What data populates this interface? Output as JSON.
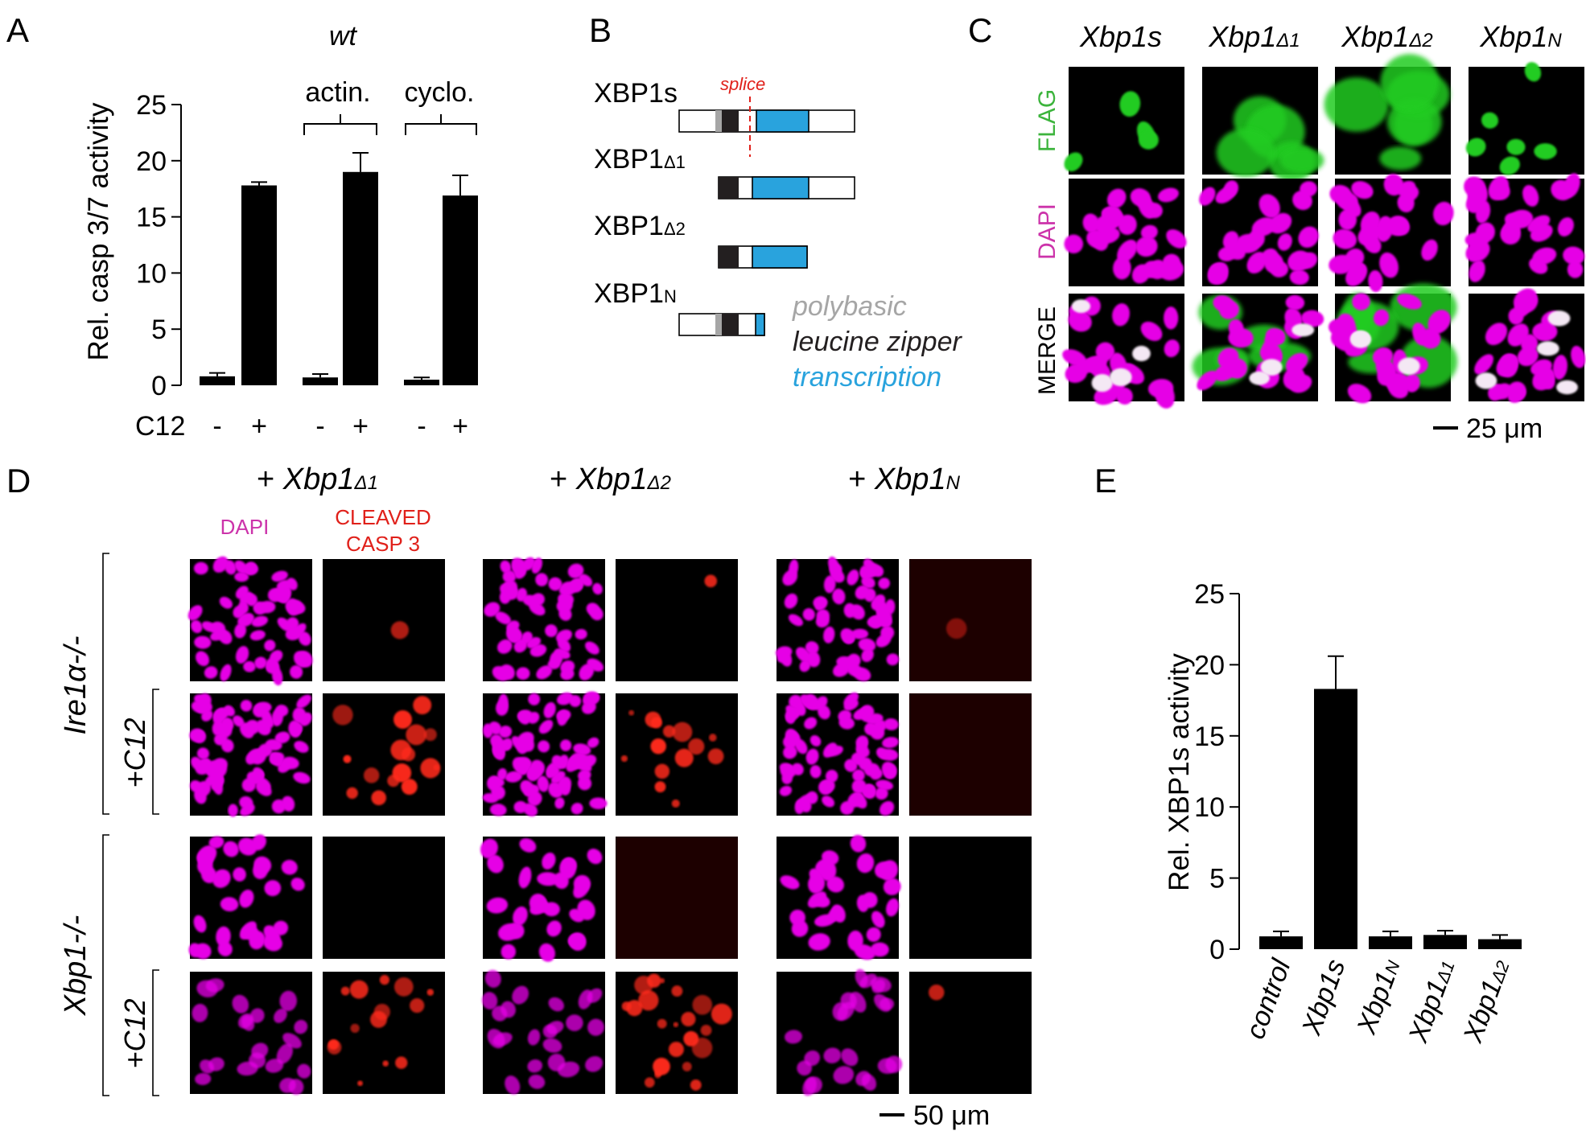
{
  "panels": {
    "A": {
      "letter": "A",
      "group_title": "wt",
      "bracket_labels": [
        "actin.",
        "cyclo."
      ],
      "row_label": "C12",
      "treatment_signs": [
        "-",
        "+",
        "-",
        "+",
        "-",
        "+"
      ],
      "y_ticks": [
        "25",
        "20",
        "15",
        "10",
        "5",
        "0"
      ]
    },
    "B": {
      "letter": "B",
      "splice_label": "splice",
      "constructs": [
        {
          "name": "XBP1s",
          "sub": ""
        },
        {
          "name": "XBP1",
          "sub": "Δ1"
        },
        {
          "name": "XBP1",
          "sub": "Δ2"
        },
        {
          "name": "XBP1",
          "sub": "N"
        }
      ],
      "legend": [
        {
          "label": "polybasic",
          "color": "#a6a6a6"
        },
        {
          "label": "leucine zipper",
          "color": "#231f20"
        },
        {
          "label": "transcription",
          "color": "#29a3dd"
        }
      ]
    },
    "C": {
      "letter": "C",
      "columns": [
        {
          "name": "Xbp1s",
          "sub": ""
        },
        {
          "name": "Xbp1",
          "sub": "Δ1"
        },
        {
          "name": "Xbp1",
          "sub": "Δ2"
        },
        {
          "name": "Xbp1",
          "sub": "N"
        }
      ],
      "rows": [
        "FLAG",
        "DAPI",
        "MERGE"
      ],
      "scale_bar": "25 μm"
    },
    "D": {
      "letter": "D",
      "groups": [
        {
          "prefix": "+ ",
          "name": "Xbp1",
          "sub": "Δ1"
        },
        {
          "prefix": "+ ",
          "name": "Xbp1",
          "sub": "Δ2"
        },
        {
          "prefix": "+ ",
          "name": "Xbp1",
          "sub": "N"
        }
      ],
      "channel_labels": {
        "dapi": "DAPI",
        "casp_line1": "CLEAVED",
        "casp_line2": "CASP 3"
      },
      "genotypes": [
        "Ire1α-/-",
        "Xbp1-/-"
      ],
      "treatment_label": "+C12",
      "scale_bar": "50 μm"
    },
    "E": {
      "letter": "E",
      "y_ticks": [
        "25",
        "20",
        "15",
        "10",
        "5",
        "0"
      ]
    }
  },
  "colors": {
    "bar": "#000000",
    "dapi": "#e600e6",
    "flag": "#22cc22",
    "casp": "#ff2a1a",
    "splice": "#e0201a",
    "flag_label": "#3cb43c",
    "dapi_label": "#cc33aa"
  },
  "chart_data": [
    {
      "panel": "A",
      "type": "bar",
      "ylabel": "Rel. casp 3/7 activity",
      "ylim": [
        0,
        25
      ],
      "categories": [
        "-",
        "+",
        "-",
        "+",
        "-",
        "+"
      ],
      "groups": [
        "",
        "actin.",
        "cyclo."
      ],
      "values": [
        0.8,
        17.8,
        0.7,
        19.0,
        0.5,
        16.9
      ],
      "errors": [
        0.3,
        0.3,
        0.3,
        1.7,
        0.2,
        1.8
      ]
    },
    {
      "panel": "E",
      "type": "bar",
      "ylabel": "Rel. XBP1s activity",
      "ylim": [
        0,
        25
      ],
      "categories": [
        {
          "name": "control",
          "sub": ""
        },
        {
          "name": "Xbp1s",
          "sub": ""
        },
        {
          "name": "Xbp1",
          "sub": "N"
        },
        {
          "name": "Xbp1",
          "sub": "Δ1"
        },
        {
          "name": "Xbp1",
          "sub": "Δ2"
        }
      ],
      "values": [
        0.9,
        18.3,
        0.9,
        1.0,
        0.7
      ],
      "errors": [
        0.35,
        2.3,
        0.35,
        0.3,
        0.3
      ]
    }
  ]
}
